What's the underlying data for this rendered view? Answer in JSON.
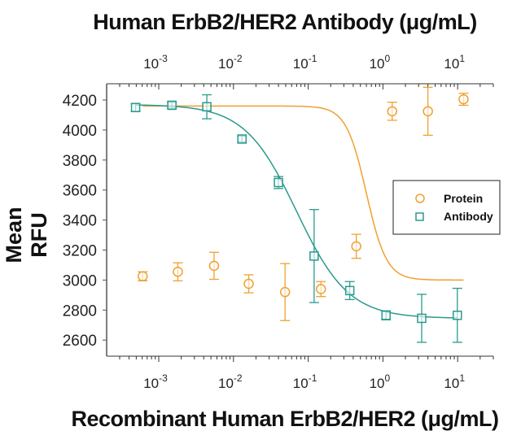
{
  "chart_data": {
    "type": "scatter",
    "title_top": "Human ErbB2/HER2 Antibody (μg/mL)",
    "xlabel": "Recombinant Human ErbB2/HER2 (μg/mL)",
    "ylabel": "Mean RFU",
    "xscale": "log",
    "xlim": [
      0.0003,
      30
    ],
    "ylim": [
      2520,
      4290
    ],
    "x_ticks": [
      "10^-3",
      "10^-2",
      "10^-1",
      "10^0",
      "10^1"
    ],
    "y_ticks": [
      2600,
      2800,
      3000,
      3200,
      3400,
      3600,
      3800,
      4000,
      4200
    ],
    "legend": {
      "position": "right-center",
      "entries": [
        "Protein",
        "Antibody"
      ]
    },
    "series": [
      {
        "name": "Protein",
        "color": "#F0A030",
        "marker": "circle",
        "x": [
          0.00061,
          0.0018,
          0.0055,
          0.016,
          0.049,
          0.148,
          0.44,
          1.33,
          4.0,
          12.0
        ],
        "y": [
          3025,
          3055,
          3095,
          2975,
          2920,
          2940,
          3225,
          4125,
          4125,
          4205
        ],
        "err": [
          30,
          60,
          90,
          60,
          190,
          50,
          80,
          60,
          160,
          40
        ]
      },
      {
        "name": "Antibody",
        "color": "#2A9A8E",
        "marker": "square",
        "x": [
          0.00049,
          0.0015,
          0.0044,
          0.013,
          0.04,
          0.12,
          0.36,
          1.1,
          3.3,
          9.9
        ],
        "y": [
          4150,
          4165,
          4155,
          3940,
          3650,
          3160,
          2930,
          2765,
          2745,
          2765
        ],
        "err": [
          25,
          20,
          80,
          20,
          40,
          310,
          60,
          30,
          160,
          180
        ]
      }
    ]
  }
}
